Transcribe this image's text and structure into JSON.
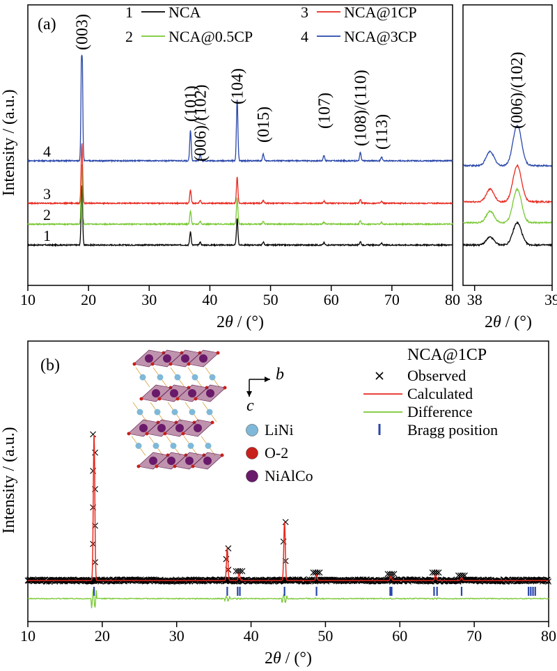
{
  "chart_data": [
    {
      "panel_label": "(a)",
      "type": "line",
      "ylabel": "Intensity / (a.u.)",
      "xlabel_prefix": "2",
      "xlabel_symbol": "θ",
      "xlabel_suffix": " / (°)",
      "xlim": [
        10,
        80
      ],
      "xticks": [
        10,
        20,
        30,
        40,
        50,
        60,
        70,
        80
      ],
      "legend": [
        {
          "num": "1",
          "name": "NCA",
          "color": "#000000"
        },
        {
          "num": "2",
          "name": "NCA@0.5CP",
          "color": "#78c832"
        },
        {
          "num": "3",
          "name": "NCA@1CP",
          "color": "#e8281e"
        },
        {
          "num": "4",
          "name": "NCA@3CP",
          "color": "#2846aa"
        }
      ],
      "series_labels": [
        "1",
        "2",
        "3",
        "4"
      ],
      "peaks": [
        {
          "x": 18.9,
          "label": "(003)",
          "h": 1.0
        },
        {
          "x": 36.8,
          "label": "(101)",
          "h": 0.22
        },
        {
          "x": 38.4,
          "label": "(006)/(102)",
          "h": 0.05
        },
        {
          "x": 44.5,
          "label": "(104)",
          "h": 0.44
        },
        {
          "x": 48.8,
          "label": "(015)",
          "h": 0.05
        },
        {
          "x": 58.8,
          "label": "(107)",
          "h": 0.04
        },
        {
          "x": 64.8,
          "label": "(108)/(110)",
          "h": 0.06
        },
        {
          "x": 68.3,
          "label": "(113)",
          "h": 0.03
        }
      ]
    },
    {
      "panel_label": "",
      "type": "line",
      "xlabel_prefix": "2",
      "xlabel_symbol": "θ",
      "xlabel_suffix": " / (°)",
      "xlim": [
        37.85,
        39.0
      ],
      "xticks": [
        38,
        39
      ],
      "annotation": "(006)/(102)",
      "peaks": [
        {
          "x": 38.2,
          "h": 0.35
        },
        {
          "x": 38.55,
          "h": 1.0
        }
      ]
    },
    {
      "panel_label": "(b)",
      "type": "scatter",
      "ylabel": "Intensity / (a.u.)",
      "xlabel_prefix": "2",
      "xlabel_symbol": "θ",
      "xlabel_suffix": " / (°)",
      "xlim": [
        10,
        80
      ],
      "xticks": [
        10,
        20,
        30,
        40,
        50,
        60,
        70,
        80
      ],
      "legend_title": "NCA@1CP",
      "legend": [
        {
          "name": "Observed",
          "marker": "×",
          "color": "#000000"
        },
        {
          "name": "Calculated",
          "marker": "line",
          "color": "#e8281e"
        },
        {
          "name": "Difference",
          "marker": "line",
          "color": "#78c832"
        },
        {
          "name": "Bragg position",
          "marker": "|",
          "color": "#2846aa"
        }
      ],
      "inset_axes": {
        "b": "b",
        "c": "c"
      },
      "inset_legend": [
        {
          "name": "LiNi",
          "color": "#7fb8d8"
        },
        {
          "name": "O-2",
          "color": "#c8201a"
        },
        {
          "name": "NiAlCo",
          "color": "#6a1a6a"
        }
      ],
      "peaks": [
        {
          "x": 18.9,
          "h": 1.0
        },
        {
          "x": 36.8,
          "h": 0.22
        },
        {
          "x": 38.4,
          "h": 0.05
        },
        {
          "x": 44.5,
          "h": 0.4
        },
        {
          "x": 48.8,
          "h": 0.04
        },
        {
          "x": 58.8,
          "h": 0.03
        },
        {
          "x": 64.8,
          "h": 0.04
        },
        {
          "x": 68.3,
          "h": 0.02
        }
      ],
      "bragg_positions": [
        18.9,
        36.8,
        38.2,
        38.5,
        44.5,
        48.8,
        58.7,
        58.9,
        64.6,
        65.0,
        68.3,
        77.3,
        77.6,
        77.9,
        78.2
      ]
    }
  ]
}
